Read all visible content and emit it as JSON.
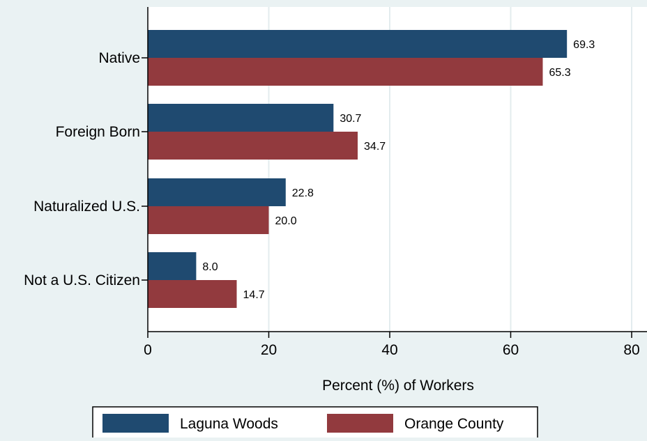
{
  "chart_data": {
    "type": "bar",
    "orientation": "horizontal",
    "categories": [
      "Native",
      "Foreign Born",
      "Naturalized U.S.",
      "Not a U.S. Citizen"
    ],
    "series": [
      {
        "name": "Laguna Woods",
        "values": [
          69.3,
          30.7,
          22.8,
          8.0
        ],
        "labels": [
          "69.3",
          "30.7",
          "22.8",
          "8.0"
        ],
        "color": "#1f4a70"
      },
      {
        "name": "Orange County",
        "values": [
          65.3,
          34.7,
          20.0,
          14.7
        ],
        "labels": [
          "65.3",
          "34.7",
          "20.0",
          "14.7"
        ],
        "color": "#923a3e"
      }
    ],
    "xlabel": "Percent (%) of Workers",
    "xlim": [
      0,
      80
    ],
    "xticks": [
      "0",
      "20",
      "40",
      "60",
      "80"
    ],
    "grid": true,
    "legend_position": "bottom"
  }
}
